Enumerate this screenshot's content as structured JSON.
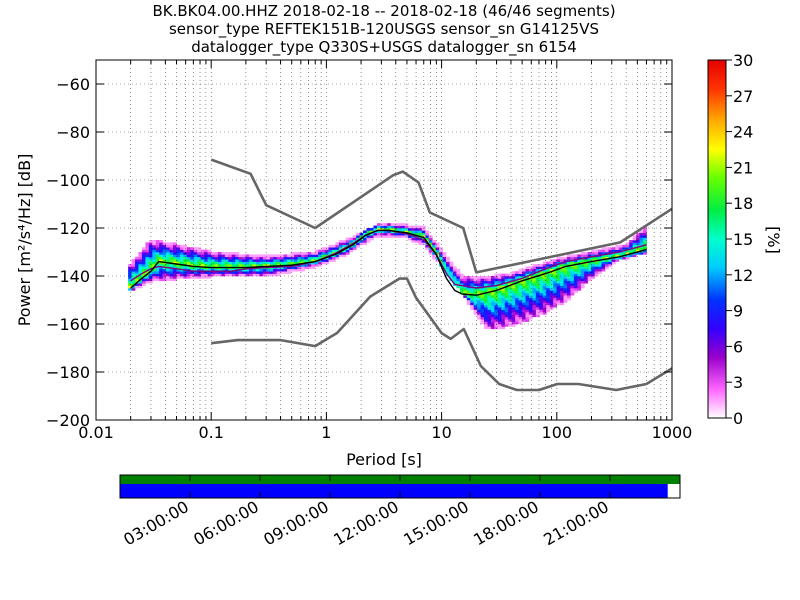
{
  "chart_data": {
    "type": "heatmap",
    "title_lines": [
      "BK.BK04.00.HHZ   2018-02-18 -- 2018-02-18  (46/46 segments)",
      "sensor_type REFTEK151B-120USGS sensor_sn G14125VS",
      "datalogger_type Q330S+USGS datalogger_sn 6154"
    ],
    "xlabel": "Period [s]",
    "ylabel": "Power [m²/s⁴/Hz] [dB]",
    "x_scale": "log",
    "xlim": [
      0.01,
      1000
    ],
    "ylim": [
      -200,
      -50
    ],
    "x_ticks": [
      0.01,
      0.1,
      1,
      10,
      100,
      1000
    ],
    "x_tick_labels": [
      "0.01",
      "0.1",
      "1",
      "10",
      "100",
      "1000"
    ],
    "y_ticks": [
      -60,
      -80,
      -100,
      -120,
      -140,
      -160,
      -180,
      -200
    ],
    "y_tick_labels": [
      "−60",
      "−80",
      "−100",
      "−120",
      "−140",
      "−160",
      "−180",
      "−200"
    ],
    "grid": true,
    "colorbar": {
      "label": "[%]",
      "min": 0,
      "max": 30,
      "ticks": [
        0,
        3,
        6,
        9,
        12,
        15,
        18,
        21,
        24,
        27,
        30
      ],
      "tick_labels": [
        "0",
        "3",
        "6",
        "9",
        "12",
        "15",
        "18",
        "21",
        "24",
        "27",
        "30"
      ]
    },
    "noise_model_high": {
      "name": "",
      "x": [
        0.1,
        0.22,
        0.3,
        0.8,
        3.8,
        4.6,
        6.3,
        7.9,
        15.4,
        20,
        354.8,
        1000
      ],
      "y": [
        -91.5,
        -97.4,
        -110.5,
        -120.0,
        -98.0,
        -96.5,
        -101.0,
        -113.5,
        -120.0,
        -138.5,
        -126.0,
        -112.0
      ]
    },
    "noise_model_low": {
      "name": "",
      "x": [
        0.1,
        0.17,
        0.4,
        0.8,
        1.24,
        2.4,
        4.3,
        5.0,
        6.0,
        10.0,
        12.0,
        15.6,
        21.9,
        31.6,
        45.0,
        70.0,
        101.0,
        154.0,
        328.0,
        600.0,
        1000.0
      ],
      "y": [
        -168.0,
        -166.7,
        -166.7,
        -169.2,
        -163.7,
        -148.6,
        -141.1,
        -141.1,
        -149.0,
        -163.8,
        -166.2,
        -162.1,
        -177.5,
        -185.0,
        -187.5,
        -187.5,
        -185.0,
        -185.0,
        -187.5,
        -185.0,
        -178.5
      ],
      "note": ""
    },
    "mode_curve": {
      "x": [
        0.02,
        0.025,
        0.03,
        0.035,
        0.05,
        0.07,
        0.1,
        0.15,
        0.2,
        0.3,
        0.5,
        0.8,
        1.2,
        1.7,
        2.2,
        2.8,
        3.5,
        5,
        7,
        9,
        11,
        13,
        15,
        20,
        30,
        50,
        80,
        120,
        200,
        350,
        600
      ],
      "y": [
        -145,
        -141,
        -138,
        -134,
        -135,
        -136,
        -136.5,
        -136.5,
        -136.5,
        -136,
        -135.5,
        -134,
        -131,
        -127,
        -123,
        -121,
        -121,
        -122,
        -124,
        -131,
        -141,
        -146,
        -147.5,
        -148,
        -146,
        -142,
        -139,
        -136,
        -134,
        -132,
        -129
      ]
    },
    "mean_curve": {
      "x": [
        0.02,
        0.025,
        0.03,
        0.035,
        0.05,
        0.07,
        0.1,
        0.15,
        0.2,
        0.3,
        0.5,
        0.8,
        1.2,
        1.7,
        2.2,
        2.8,
        3.5,
        5,
        7,
        9,
        11,
        13,
        15,
        20,
        30,
        50,
        80,
        120,
        200,
        350,
        600
      ],
      "y": [
        -142,
        -139,
        -137,
        -136,
        -137,
        -138,
        -138,
        -138,
        -137,
        -136.5,
        -136,
        -134,
        -130.5,
        -126.5,
        -123,
        -121,
        -121,
        -122.5,
        -125,
        -131,
        -139,
        -143.5,
        -144,
        -145,
        -144,
        -141,
        -137,
        -134,
        -132,
        -130,
        -127
      ]
    },
    "pdf_envelope_upper": {
      "x": [
        0.02,
        0.03,
        0.05,
        0.1,
        0.3,
        0.8,
        1.5,
        2.5,
        3,
        5,
        7,
        10,
        15,
        20,
        40,
        100,
        200,
        400,
        600
      ],
      "y": [
        -136,
        -126,
        -128,
        -131,
        -133,
        -131,
        -126,
        -121,
        -119,
        -120,
        -121,
        -130,
        -141,
        -142,
        -140,
        -134,
        -131,
        -128,
        -120
      ]
    },
    "pdf_envelope_lower": {
      "x": [
        0.02,
        0.03,
        0.05,
        0.1,
        0.3,
        0.8,
        1.5,
        2.5,
        3,
        5,
        7,
        10,
        15,
        20,
        25,
        30,
        50,
        80,
        120,
        200,
        350,
        600
      ],
      "y": [
        -146,
        -142,
        -141,
        -140,
        -140,
        -136,
        -131,
        -124,
        -123,
        -124,
        -127,
        -136,
        -147,
        -156,
        -162,
        -162,
        -159,
        -155,
        -150,
        -141,
        -133,
        -130
      ]
    },
    "timeline": {
      "x_tick_labels": [
        "03:00:00",
        "06:00:00",
        "09:00:00",
        "12:00:00",
        "15:00:00",
        "18:00:00",
        "21:00:00"
      ],
      "available_color": "#008000",
      "used_color": "#0000ff",
      "used_fraction": 0.978
    },
    "colors": {
      "noise_model": "#666666",
      "mode_curve": "#000000",
      "mean_curve": "#800080"
    }
  }
}
